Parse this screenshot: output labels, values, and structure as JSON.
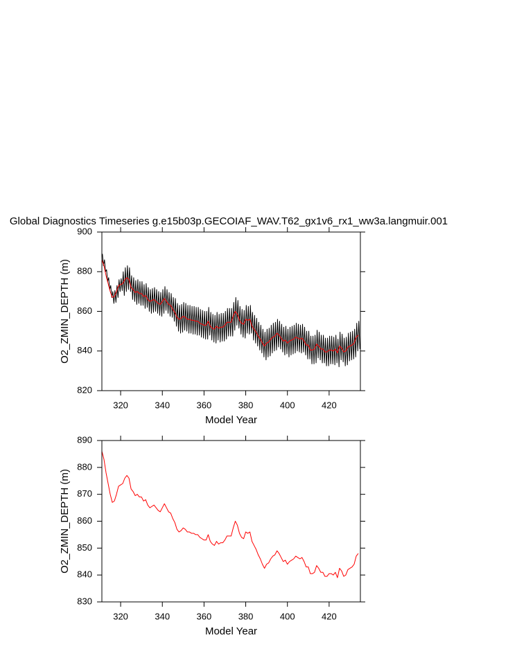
{
  "chart_data": [
    {
      "type": "line",
      "title": "Global Diagnostics Timeseries g.e15b03p.GECOIAF_WAV.T62_gx1v6_rx1_ww3a.langmuir.001",
      "xlabel": "Model Year",
      "ylabel": "O2_ZMIN_DEPTH (m)",
      "xlim": [
        311,
        435
      ],
      "xticks": [
        320,
        340,
        360,
        380,
        400,
        420
      ],
      "ylim": [
        820,
        900
      ],
      "yticks": [
        820,
        840,
        860,
        880,
        900
      ],
      "series": [
        {
          "color": "#000000",
          "x": [
            311.25,
            311.75,
            312.25,
            312.75,
            313.25,
            313.75,
            314.25,
            314.75,
            315.25,
            315.75,
            316.25,
            316.75,
            317.25,
            317.75,
            318.25,
            318.75,
            319.25,
            319.75,
            320.25,
            320.75,
            321.25,
            321.75,
            322.25,
            322.75,
            323.25,
            323.75,
            324.25,
            324.75,
            325.25,
            325.75,
            326.25,
            326.75,
            327.25,
            327.75,
            328.25,
            328.75,
            329.25,
            329.75,
            330.25,
            330.75,
            331.25,
            331.75,
            332.25,
            332.75,
            333.25,
            333.75,
            334.25,
            334.75,
            335.25,
            335.75,
            336.25,
            336.75,
            337.25,
            337.75,
            338.25,
            338.75,
            339.25,
            339.75,
            340.25,
            340.75,
            341.25,
            341.75,
            342.25,
            342.75,
            343.25,
            343.75,
            344.25,
            344.75,
            345.25,
            345.75,
            346.25,
            346.75,
            347.25,
            347.75,
            348.25,
            348.75,
            349.25,
            349.75,
            350.25,
            350.75,
            351.25,
            351.75,
            352.25,
            352.75,
            353.25,
            353.75,
            354.25,
            354.75,
            355.25,
            355.75,
            356.25,
            356.75,
            357.25,
            357.75,
            358.25,
            358.75,
            359.25,
            359.75,
            360.25,
            360.75,
            361.25,
            361.75,
            362.25,
            362.75,
            363.25,
            363.75,
            364.25,
            364.75,
            365.25,
            365.75,
            366.25,
            366.75,
            367.25,
            367.75,
            368.25,
            368.75,
            369.25,
            369.75,
            370.25,
            370.75,
            371.25,
            371.75,
            372.25,
            372.75,
            373.25,
            373.75,
            374.25,
            374.75,
            375.25,
            375.75,
            376.25,
            376.75,
            377.25,
            377.75,
            378.25,
            378.75,
            379.25,
            379.75,
            380.25,
            380.75,
            381.25,
            381.75,
            382.25,
            382.75,
            383.25,
            383.75,
            384.25,
            384.75,
            385.25,
            385.75,
            386.25,
            386.75,
            387.25,
            387.75,
            388.25,
            388.75,
            389.25,
            389.75,
            390.25,
            390.75,
            391.25,
            391.75,
            392.25,
            392.75,
            393.25,
            393.75,
            394.25,
            394.75,
            395.25,
            395.75,
            396.25,
            396.75,
            397.25,
            397.75,
            398.25,
            398.75,
            399.25,
            399.75,
            400.25,
            400.75,
            401.25,
            401.75,
            402.25,
            402.75,
            403.25,
            403.75,
            404.25,
            404.75,
            405.25,
            405.75,
            406.25,
            406.75,
            407.25,
            407.75,
            408.25,
            408.75,
            409.25,
            409.75,
            410.25,
            410.75,
            411.25,
            411.75,
            412.25,
            412.75,
            413.25,
            413.75,
            414.25,
            414.75,
            415.25,
            415.75,
            416.25,
            416.75,
            417.25,
            417.75,
            418.25,
            418.75,
            419.25,
            419.75,
            420.25,
            420.75,
            421.25,
            421.75,
            422.25,
            422.75,
            423.25,
            423.75,
            424.25,
            424.75,
            425.25,
            425.75,
            426.25,
            426.75,
            427.25,
            427.75,
            428.25,
            428.75,
            429.25,
            429.75,
            430.25,
            430.75,
            431.25,
            431.75,
            432.25,
            432.75,
            433.25,
            433.75,
            434.25,
            434.75
          ],
          "values": [
            889,
            883,
            886,
            880,
            881,
            875,
            877,
            871,
            873,
            867,
            870,
            864,
            870.5,
            864.5,
            873,
            867,
            876,
            870,
            876.5,
            870.5,
            880,
            868,
            882,
            870,
            883,
            871,
            882,
            870,
            878,
            866,
            877,
            865,
            875.5,
            863.5,
            876,
            864,
            875,
            863,
            875,
            863,
            873.5,
            861.5,
            874,
            862,
            872,
            860,
            871,
            859,
            871.5,
            859.5,
            872,
            860,
            871,
            859,
            870,
            858,
            869.5,
            857.5,
            871,
            859,
            872.5,
            860.5,
            871,
            859,
            869.5,
            857.5,
            869,
            857,
            867,
            855,
            866.5,
            852.5,
            864,
            850,
            863,
            849,
            863.5,
            849.5,
            864.5,
            850.5,
            864,
            850,
            863,
            849,
            863,
            849,
            862.5,
            848.5,
            862.5,
            848.5,
            862,
            848,
            862,
            848,
            861,
            847,
            860.5,
            846.5,
            860,
            846,
            860,
            846,
            862,
            848,
            859.5,
            845.5,
            858.5,
            844.5,
            858,
            844,
            859.5,
            845.5,
            858.5,
            844.5,
            859,
            845,
            859,
            845,
            860,
            846,
            861.5,
            847.5,
            861.5,
            847.5,
            861.5,
            847.5,
            864.5,
            850.5,
            867,
            853,
            865.5,
            851.5,
            862.5,
            848.5,
            861,
            847,
            860.5,
            846.5,
            863,
            849,
            862.5,
            848.5,
            863,
            849,
            859.5,
            845.5,
            858,
            844,
            856.5,
            842.5,
            854.5,
            840.5,
            853,
            839,
            851,
            837,
            849.5,
            835.5,
            851,
            837,
            851.5,
            837.5,
            853,
            839,
            854,
            840,
            854.5,
            840.5,
            856,
            842,
            855,
            841,
            853.5,
            839.5,
            852,
            838,
            852.5,
            838.5,
            851,
            837,
            852,
            838,
            852.5,
            838.5,
            853,
            839,
            854,
            840,
            853.5,
            839.5,
            853,
            839,
            853.5,
            839.5,
            852,
            838,
            850,
            836,
            850,
            836,
            847.5,
            833.5,
            847.5,
            833.5,
            848,
            834,
            850.5,
            836.5,
            849.5,
            835.5,
            848,
            834,
            848,
            834,
            846.5,
            832.5,
            846.5,
            832.5,
            847.5,
            833.5,
            847.5,
            833.5,
            847,
            833,
            848,
            834,
            846,
            832,
            849.5,
            835.5,
            848.5,
            834.5,
            846.5,
            832.5,
            847,
            833,
            849,
            835,
            849.5,
            835.5,
            850,
            836,
            851,
            837,
            854,
            840,
            855,
            841
          ]
        },
        {
          "color": "#ff0000",
          "x": [
            311,
            312,
            313,
            314,
            315,
            316,
            317,
            318,
            319,
            320,
            321,
            322,
            323,
            324,
            325,
            326,
            327,
            328,
            329,
            330,
            331,
            332,
            333,
            334,
            335,
            336,
            337,
            338,
            339,
            340,
            341,
            342,
            343,
            344,
            345,
            346,
            347,
            348,
            349,
            350,
            351,
            352,
            353,
            354,
            355,
            356,
            357,
            358,
            359,
            360,
            361,
            362,
            363,
            364,
            365,
            366,
            367,
            368,
            369,
            370,
            371,
            372,
            373,
            374,
            375,
            376,
            377,
            378,
            379,
            380,
            381,
            382,
            383,
            384,
            385,
            386,
            387,
            388,
            389,
            390,
            391,
            392,
            393,
            394,
            395,
            396,
            397,
            398,
            399,
            400,
            401,
            402,
            403,
            404,
            405,
            406,
            407,
            408,
            409,
            410,
            411,
            412,
            413,
            414,
            415,
            416,
            417,
            418,
            419,
            420,
            421,
            422,
            423,
            424,
            425,
            426,
            427,
            428,
            429,
            430,
            431,
            432,
            433,
            434
          ],
          "values": [
            886,
            883,
            878,
            874,
            870,
            867,
            867.5,
            870,
            873,
            873.5,
            874,
            876,
            877,
            876,
            872,
            871,
            869.5,
            870,
            869,
            869,
            867.5,
            868,
            866,
            865,
            865.5,
            866,
            865,
            864,
            863.5,
            865,
            866.5,
            865,
            863.5,
            863,
            861,
            859.5,
            857,
            856,
            856.5,
            857.5,
            857,
            856,
            856,
            855.5,
            855.5,
            855,
            855,
            854,
            853.5,
            853,
            853,
            855,
            852.5,
            851.5,
            851,
            852.5,
            851.5,
            852,
            852,
            853,
            854.5,
            854.5,
            854.5,
            857.5,
            860,
            858.5,
            855.5,
            854,
            853.5,
            856,
            855.5,
            856,
            852.5,
            851,
            849.5,
            847.5,
            846,
            844,
            842.5,
            844,
            844.5,
            846,
            847,
            847.5,
            849,
            848,
            846.5,
            845,
            845.5,
            844,
            845,
            845.5,
            846,
            847,
            846.5,
            846,
            846.5,
            845,
            843,
            843,
            840.5,
            840.5,
            841,
            843.5,
            842.5,
            841,
            841,
            839.5,
            839.5,
            840.5,
            840.5,
            840,
            841,
            839,
            842.5,
            841.5,
            839.5,
            840,
            842,
            842.5,
            843,
            844,
            847,
            848
          ]
        }
      ]
    },
    {
      "type": "line",
      "xlabel": "Model Year",
      "ylabel": "O2_ZMIN_DEPTH (m)",
      "xlim": [
        311,
        435
      ],
      "xticks": [
        320,
        340,
        360,
        380,
        400,
        420
      ],
      "ylim": [
        830,
        890
      ],
      "yticks": [
        830,
        840,
        850,
        860,
        870,
        880,
        890
      ],
      "series": [
        {
          "color": "#ff0000",
          "x": [
            311,
            312,
            313,
            314,
            315,
            316,
            317,
            318,
            319,
            320,
            321,
            322,
            323,
            324,
            325,
            326,
            327,
            328,
            329,
            330,
            331,
            332,
            333,
            334,
            335,
            336,
            337,
            338,
            339,
            340,
            341,
            342,
            343,
            344,
            345,
            346,
            347,
            348,
            349,
            350,
            351,
            352,
            353,
            354,
            355,
            356,
            357,
            358,
            359,
            360,
            361,
            362,
            363,
            364,
            365,
            366,
            367,
            368,
            369,
            370,
            371,
            372,
            373,
            374,
            375,
            376,
            377,
            378,
            379,
            380,
            381,
            382,
            383,
            384,
            385,
            386,
            387,
            388,
            389,
            390,
            391,
            392,
            393,
            394,
            395,
            396,
            397,
            398,
            399,
            400,
            401,
            402,
            403,
            404,
            405,
            406,
            407,
            408,
            409,
            410,
            411,
            412,
            413,
            414,
            415,
            416,
            417,
            418,
            419,
            420,
            421,
            422,
            423,
            424,
            425,
            426,
            427,
            428,
            429,
            430,
            431,
            432,
            433,
            434
          ],
          "values": [
            886,
            883,
            878,
            874,
            870,
            867,
            867.5,
            870,
            873,
            873.5,
            874,
            876,
            877,
            876,
            872,
            871,
            869.5,
            870,
            869,
            869,
            867.5,
            868,
            866,
            865,
            865.5,
            866,
            865,
            864,
            863.5,
            865,
            866.5,
            865,
            863.5,
            863,
            861,
            859.5,
            857,
            856,
            856.5,
            857.5,
            857,
            856,
            856,
            855.5,
            855.5,
            855,
            855,
            854,
            853.5,
            853,
            853,
            855,
            852.5,
            851.5,
            851,
            852.5,
            851.5,
            852,
            852,
            853,
            854.5,
            854.5,
            854.5,
            857.5,
            860,
            858.5,
            855.5,
            854,
            853.5,
            856,
            855.5,
            856,
            852.5,
            851,
            849.5,
            847.5,
            846,
            844,
            842.5,
            844,
            844.5,
            846,
            847,
            847.5,
            849,
            848,
            846.5,
            845,
            845.5,
            844,
            845,
            845.5,
            846,
            847,
            846.5,
            846,
            846.5,
            845,
            843,
            843,
            840.5,
            840.5,
            841,
            843.5,
            842.5,
            841,
            841,
            839.5,
            839.5,
            840.5,
            840.5,
            840,
            841,
            839,
            842.5,
            841.5,
            839.5,
            840,
            842,
            842.5,
            843,
            844,
            847,
            848
          ]
        }
      ]
    }
  ]
}
